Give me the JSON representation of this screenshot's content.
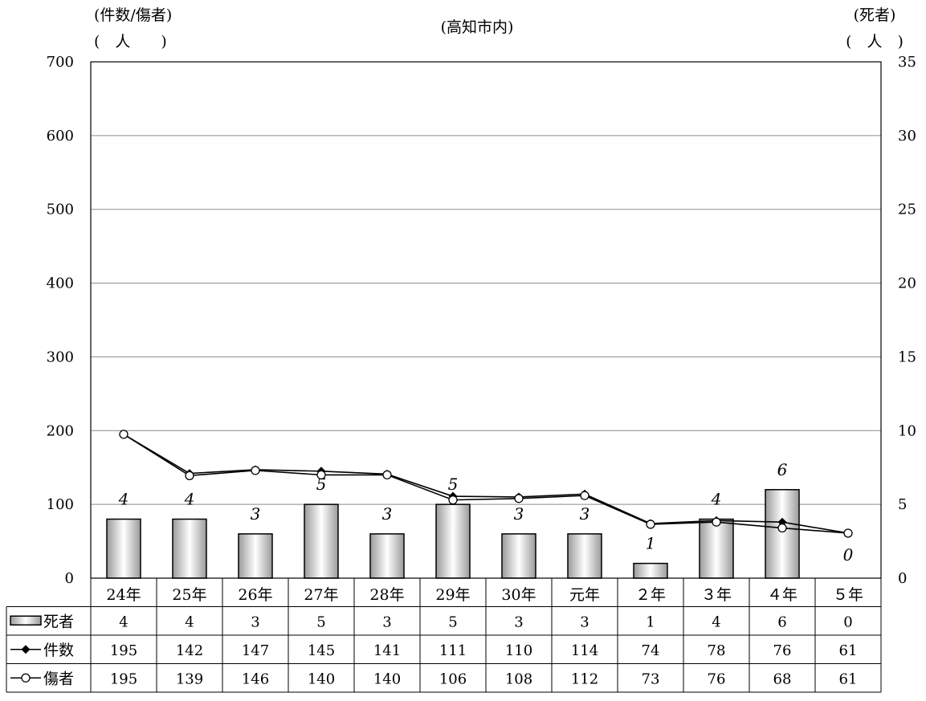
{
  "chart_data": {
    "type": "bar",
    "title": "(高知市内)",
    "left_axis_label": [
      "(件数/傷者)",
      "(　人　　)"
    ],
    "right_axis_label": [
      "(死者)",
      "(　人　)"
    ],
    "left_ylim": [
      0,
      700
    ],
    "left_ticks": [
      0,
      100,
      200,
      300,
      400,
      500,
      600,
      700
    ],
    "right_ylim": [
      0,
      35
    ],
    "right_ticks": [
      0,
      5,
      10,
      15,
      20,
      25,
      30,
      35
    ],
    "grid": true,
    "categories": [
      "24年",
      "25年",
      "26年",
      "27年",
      "28年",
      "29年",
      "30年",
      "元年",
      "２年",
      "３年",
      "４年",
      "５年"
    ],
    "series": [
      {
        "name": "死者",
        "type": "bar",
        "axis": "right",
        "values": [
          4,
          4,
          3,
          5,
          3,
          5,
          3,
          3,
          1,
          4,
          6,
          0
        ]
      },
      {
        "name": "件数",
        "type": "line",
        "axis": "left",
        "marker": "diamond",
        "values": [
          195,
          142,
          147,
          145,
          141,
          111,
          110,
          114,
          74,
          78,
          76,
          61
        ]
      },
      {
        "name": "傷者",
        "type": "line",
        "axis": "left",
        "marker": "circle",
        "values": [
          195,
          139,
          146,
          140,
          140,
          106,
          108,
          112,
          73,
          76,
          68,
          61
        ]
      }
    ],
    "table": {
      "rows": [
        {
          "label": "死者",
          "values": [
            "4",
            "4",
            "3",
            "5",
            "3",
            "5",
            "3",
            "3",
            "1",
            "4",
            "6",
            "0"
          ]
        },
        {
          "label": "件数",
          "values": [
            "195",
            "142",
            "147",
            "145",
            "141",
            "111",
            "110",
            "114",
            "74",
            "78",
            "76",
            "61"
          ]
        },
        {
          "label": "傷者",
          "values": [
            "195",
            "139",
            "146",
            "140",
            "140",
            "106",
            "108",
            "112",
            "73",
            "76",
            "68",
            "61"
          ]
        }
      ]
    },
    "colors": {
      "bar_light": "#ffffff",
      "bar_dark": "#8c8c8c",
      "line": "#000000",
      "grid": "#8c8c8c"
    }
  }
}
